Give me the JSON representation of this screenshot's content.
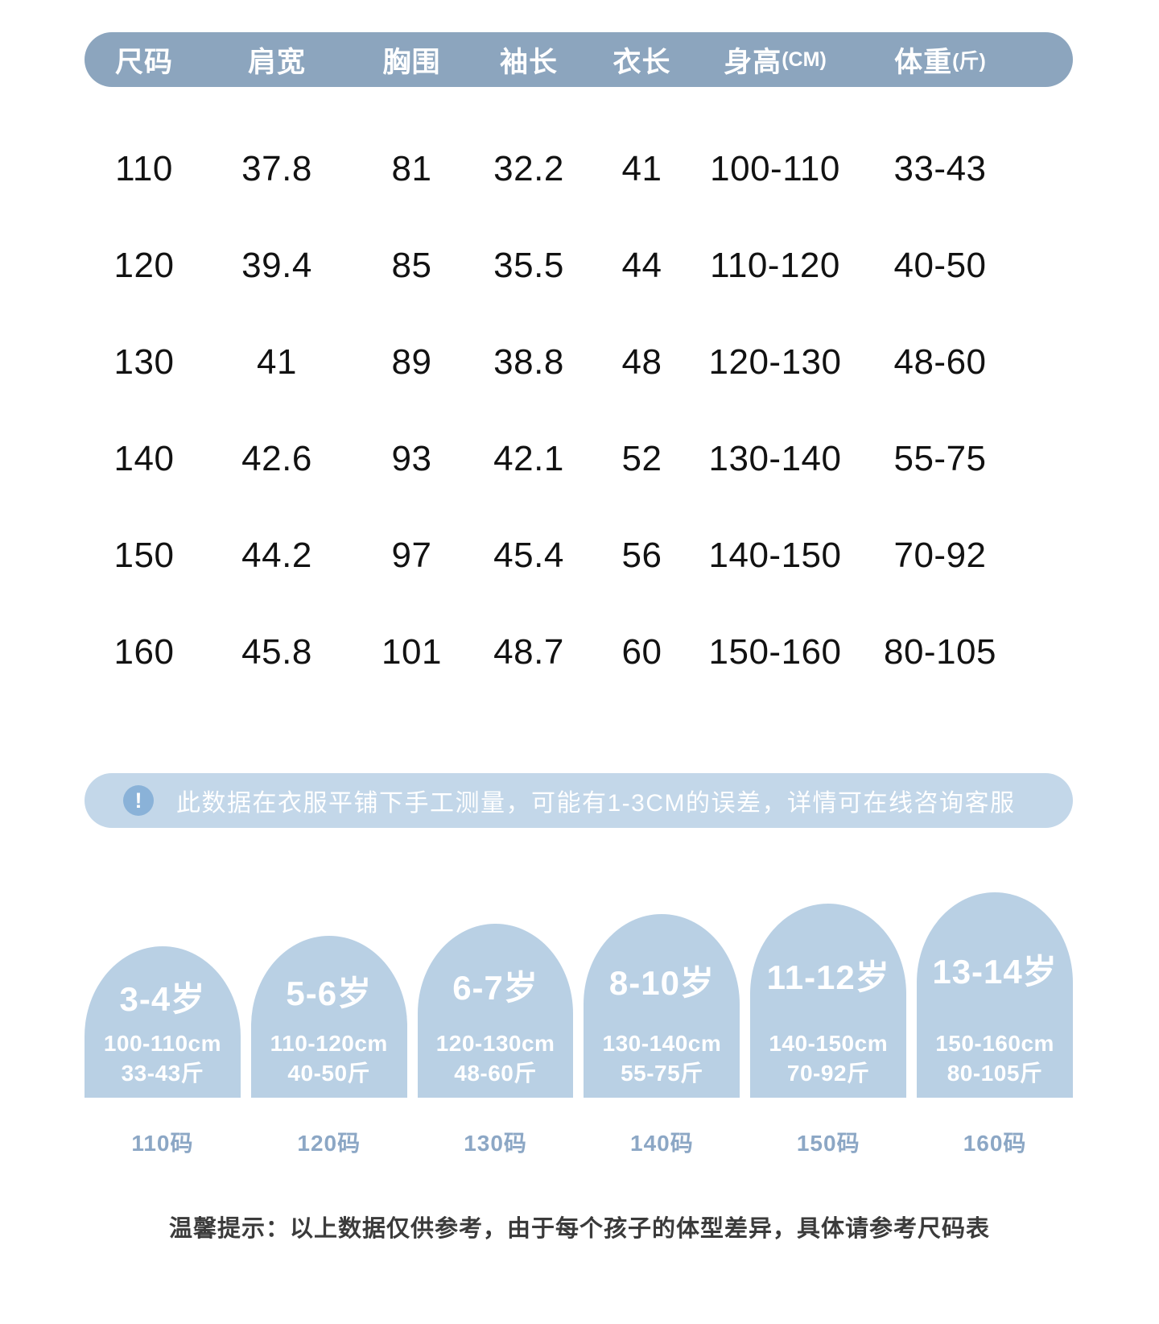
{
  "table": {
    "headers": [
      {
        "label": "尺码",
        "unit": ""
      },
      {
        "label": "肩宽",
        "unit": ""
      },
      {
        "label": "胸围",
        "unit": ""
      },
      {
        "label": "袖长",
        "unit": ""
      },
      {
        "label": "衣长",
        "unit": ""
      },
      {
        "label": "身高",
        "unit": "(CM)"
      },
      {
        "label": "体重",
        "unit": "(斤)"
      }
    ],
    "rows": [
      [
        "110",
        "37.8",
        "81",
        "32.2",
        "41",
        "100-110",
        "33-43"
      ],
      [
        "120",
        "39.4",
        "85",
        "35.5",
        "44",
        "110-120",
        "40-50"
      ],
      [
        "130",
        "41",
        "89",
        "38.8",
        "48",
        "120-130",
        "48-60"
      ],
      [
        "140",
        "42.6",
        "93",
        "42.1",
        "52",
        "130-140",
        "55-75"
      ],
      [
        "150",
        "44.2",
        "97",
        "45.4",
        "56",
        "140-150",
        "70-92"
      ],
      [
        "160",
        "45.8",
        "101",
        "48.7",
        "60",
        "150-160",
        "80-105"
      ]
    ]
  },
  "notice": {
    "icon_glyph": "!",
    "text": "此数据在衣服平铺下手工测量，可能有1-3CM的误差，详情可在线咨询客服"
  },
  "age_cards": [
    {
      "age": "3-4岁",
      "height_range": "100-110cm",
      "weight_range": "33-43斤",
      "size_code": "110码"
    },
    {
      "age": "5-6岁",
      "height_range": "110-120cm",
      "weight_range": "40-50斤",
      "size_code": "120码"
    },
    {
      "age": "6-7岁",
      "height_range": "120-130cm",
      "weight_range": "48-60斤",
      "size_code": "130码"
    },
    {
      "age": "8-10岁",
      "height_range": "130-140cm",
      "weight_range": "55-75斤",
      "size_code": "140码"
    },
    {
      "age": "11-12岁",
      "height_range": "140-150cm",
      "weight_range": "70-92斤",
      "size_code": "150码"
    },
    {
      "age": "13-14岁",
      "height_range": "150-160cm",
      "weight_range": "80-105斤",
      "size_code": "160码"
    }
  ],
  "footer_note": "温馨提示：以上数据仅供参考，由于每个孩子的体型差异，具体请参考尺码表",
  "colors": {
    "header_bg": "#8CA5BE",
    "notice_bg": "#C3D7E9",
    "alert_icon_bg": "#8AB2D8",
    "arch_bg": "#B9D0E4",
    "size_code_text": "#8CA7C5",
    "table_text": "#121212",
    "footer_text": "#3b3b3b"
  }
}
